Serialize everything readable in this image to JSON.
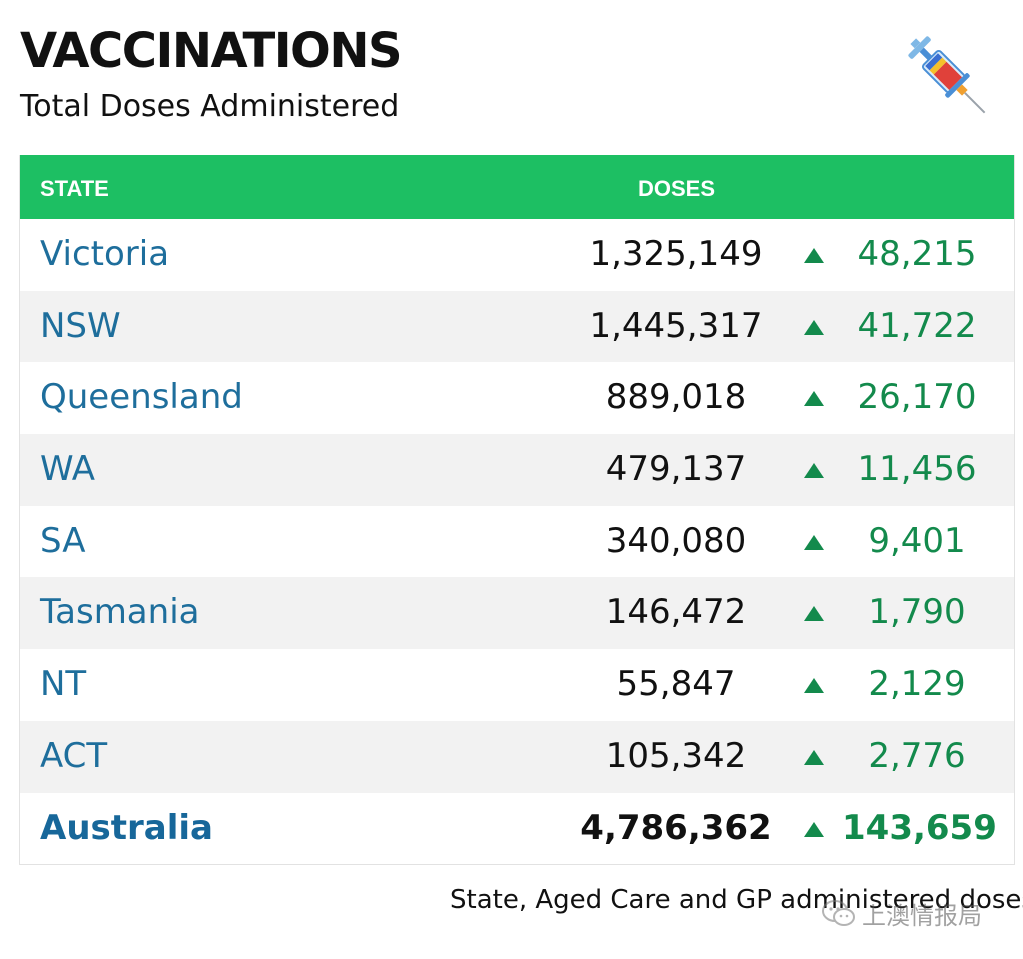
{
  "header": {
    "title": "VACCINATIONS",
    "subtitle": "Total Doses Administered"
  },
  "table": {
    "columns": {
      "state": "STATE",
      "doses": "DOSES"
    },
    "rows": [
      {
        "state": "Victoria",
        "doses": "1,325,149",
        "change": "48,215"
      },
      {
        "state": "NSW",
        "doses": "1,445,317",
        "change": "41,722"
      },
      {
        "state": "Queensland",
        "doses": "889,018",
        "change": "26,170"
      },
      {
        "state": "WA",
        "doses": "479,137",
        "change": "11,456"
      },
      {
        "state": "SA",
        "doses": "340,080",
        "change": "9,401"
      },
      {
        "state": "Tasmania",
        "doses": "146,472",
        "change": "1,790"
      },
      {
        "state": "NT",
        "doses": "55,847",
        "change": "2,129"
      },
      {
        "state": "ACT",
        "doses": "105,342",
        "change": "2,776"
      },
      {
        "state": "Australia",
        "doses": "4,786,362",
        "change": "143,659"
      }
    ]
  },
  "footer": {
    "note": "State, Aged Care and GP administered doses"
  },
  "watermark": {
    "text": "上澳情报局"
  },
  "icons": {
    "header_icon": "syringe-icon",
    "row_icon": "up-arrow-icon",
    "watermark_icon": "wechat-icon"
  },
  "colors": {
    "header_bg": "#1dbf63",
    "state_text": "#1e6e9c",
    "increase": "#138a4c"
  }
}
